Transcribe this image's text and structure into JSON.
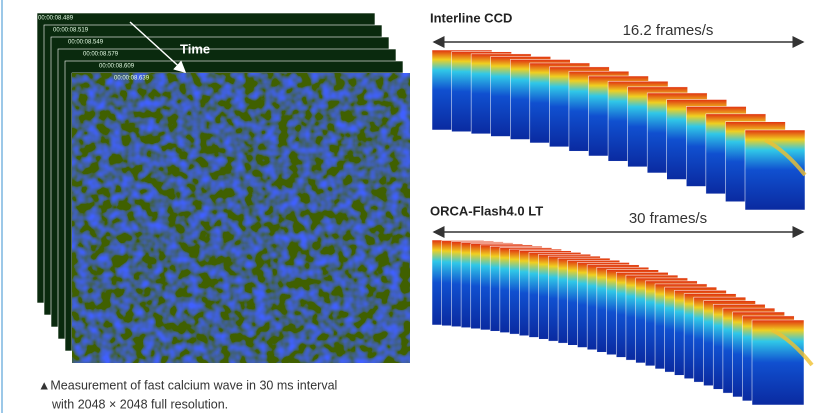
{
  "left_panel": {
    "timestamps": [
      "00:00:08.489",
      "00:00:08.519",
      "00:00:08.549",
      "00:00:08.579",
      "00:00:08.609",
      "00:00:08.639"
    ],
    "arrow_label": "Time"
  },
  "right_panel": {
    "top": {
      "title": "Interline CCD",
      "rate": "16.2 frames/s"
    },
    "bottom": {
      "title": "ORCA-Flash4.0 LT",
      "rate": "30 frames/s"
    }
  },
  "caption": [
    "▲Measurement of  fast calcium wave in 30 ms interval",
    "with 2048 × 2048 full resolution."
  ]
}
